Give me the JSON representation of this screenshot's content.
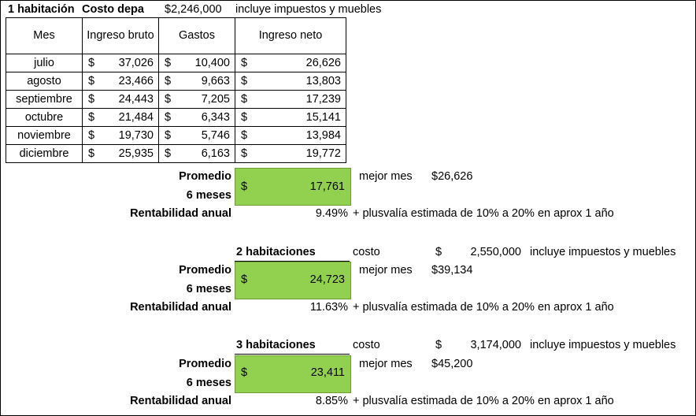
{
  "header": {
    "room": "1 habitación",
    "cost_label": "Costo depa",
    "cost_value": "$2,246,000",
    "note": "incluye impuestos y muebles"
  },
  "table": {
    "columns": [
      "Mes",
      "Ingreso bruto",
      "Gastos",
      "Ingreso neto"
    ],
    "currency": "$",
    "rows": [
      [
        "julio",
        "37,026",
        "10,400",
        "26,626"
      ],
      [
        "agosto",
        "23,466",
        "9,663",
        "13,803"
      ],
      [
        "septiembre",
        "24,443",
        "7,205",
        "17,239"
      ],
      [
        "octubre",
        "21,484",
        "6,343",
        "15,141"
      ],
      [
        "noviembre",
        "19,730",
        "5,746",
        "13,984"
      ],
      [
        "diciembre",
        "25,935",
        "6,163",
        "19,772"
      ]
    ]
  },
  "sections": [
    {
      "avg_label_1": "Promedio",
      "avg_label_2": "6 meses",
      "avg_value": "17,761",
      "best_label": "mejor mes",
      "best_value": "$26,626",
      "rent_label": "Rentabilidad anual",
      "rent_value": "9.49%",
      "rent_note": "+ plusvalía estimada de 10% a 20% en aprox 1 año"
    },
    {
      "title": "2 habitaciones",
      "cost_label": "costo",
      "cost_value": "2,550,000",
      "note": "incluye impuestos y muebles",
      "avg_label_1": "Promedio",
      "avg_label_2": "6 meses",
      "avg_value": "24,723",
      "best_label": "mejor mes",
      "best_value": "$39,134",
      "rent_label": "Rentabilidad anual",
      "rent_value": "11.63%",
      "rent_note": "+ plusvalía estimada de 10% a 20% en aprox 1 año"
    },
    {
      "title": "3 habitaciones",
      "cost_label": "costo",
      "cost_value": "3,174,000",
      "note": "incluye impuestos y muebles",
      "avg_label_1": "Promedio",
      "avg_label_2": "6 meses",
      "avg_value": "23,411",
      "best_label": "mejor mes",
      "best_value": "$45,200",
      "rent_label": "Rentabilidad anual",
      "rent_value": "8.85%",
      "rent_note": "+ plusvalía estimada de 10% a 20% en aprox 1 año"
    }
  ],
  "colors": {
    "highlight": "#92d050"
  }
}
